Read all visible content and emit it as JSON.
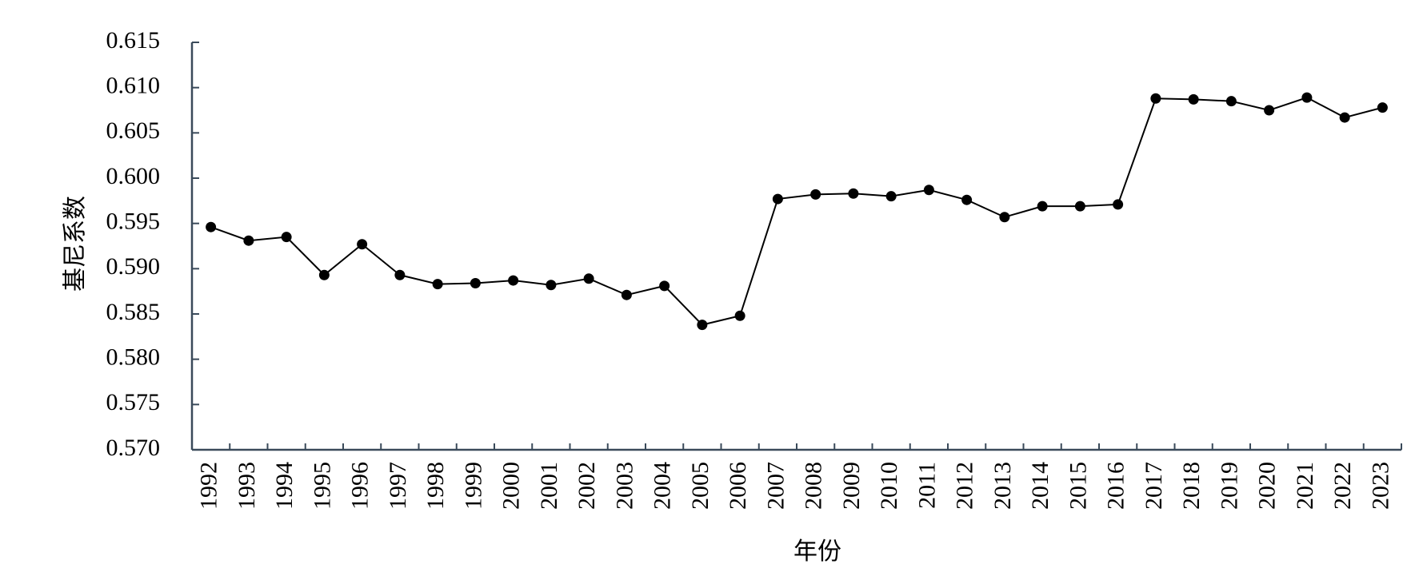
{
  "chart_data": {
    "type": "line",
    "title": "",
    "xlabel": "年份",
    "ylabel": "基尼系数",
    "ylim": [
      0.57,
      0.615
    ],
    "y_ticks": [
      "0.570",
      "0.575",
      "0.580",
      "0.585",
      "0.590",
      "0.595",
      "0.600",
      "0.605",
      "0.610",
      "0.615"
    ],
    "grid": false,
    "legend": "none",
    "x": [
      "1992",
      "1993",
      "1994",
      "1995",
      "1996",
      "1997",
      "1998",
      "1999",
      "2000",
      "2001",
      "2002",
      "2003",
      "2004",
      "2005",
      "2006",
      "2007",
      "2008",
      "2009",
      "2010",
      "2011",
      "2012",
      "2013",
      "2014",
      "2015",
      "2016",
      "2017",
      "2018",
      "2019",
      "2020",
      "2021",
      "2022",
      "2023"
    ],
    "series": [
      {
        "values": [
          0.5946,
          0.5931,
          0.5935,
          0.5893,
          0.5927,
          0.5893,
          0.5883,
          0.5884,
          0.5887,
          0.5882,
          0.5889,
          0.5871,
          0.5881,
          0.5838,
          0.5848,
          0.5977,
          0.5982,
          0.5983,
          0.598,
          0.5987,
          0.5976,
          0.5957,
          0.5969,
          0.5969,
          0.5971,
          0.6088,
          0.6087,
          0.6085,
          0.6075,
          0.6089,
          0.6067,
          0.6078
        ],
        "color": "#000000"
      }
    ]
  }
}
